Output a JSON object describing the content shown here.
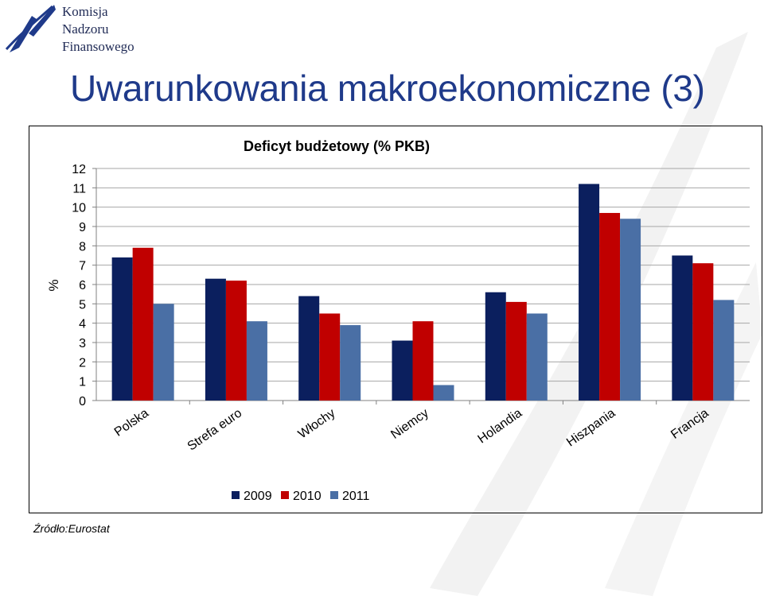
{
  "logo": {
    "lines": [
      "Komisja",
      "Nadzoru",
      "Finansowego"
    ]
  },
  "slide": {
    "title": "Uwarunkowania makroekonomiczne (3)",
    "source": "Źródło:Eurostat"
  },
  "colors": {
    "title": "#1f3a8a",
    "logo_mark": "#1f3a8a",
    "series_2009": "#0b1f5e",
    "series_2010": "#c00000",
    "series_2011": "#4a6fa5",
    "gridline": "#a6a6a6"
  },
  "chart_data": {
    "type": "bar",
    "title": "Deficyt budżetowy (% PKB)",
    "ylabel": "%",
    "xlabel": "",
    "ylim": [
      0,
      12
    ],
    "yticks": [
      0,
      1,
      2,
      3,
      4,
      5,
      6,
      7,
      8,
      9,
      10,
      11,
      12
    ],
    "grid": true,
    "legend_position": "bottom",
    "categories": [
      "Polska",
      "Strefa euro",
      "Włochy",
      "Niemcy",
      "Holandia",
      "Hiszpania",
      "Francja"
    ],
    "series": [
      {
        "name": "2009",
        "color": "#0b1f5e",
        "values": [
          7.4,
          6.3,
          5.4,
          3.1,
          5.6,
          11.2,
          7.5
        ]
      },
      {
        "name": "2010",
        "color": "#c00000",
        "values": [
          7.9,
          6.2,
          4.5,
          4.1,
          5.1,
          9.7,
          7.1
        ]
      },
      {
        "name": "2011",
        "color": "#4a6fa5",
        "values": [
          5.0,
          4.1,
          3.9,
          0.8,
          4.5,
          9.4,
          5.2
        ]
      }
    ]
  }
}
